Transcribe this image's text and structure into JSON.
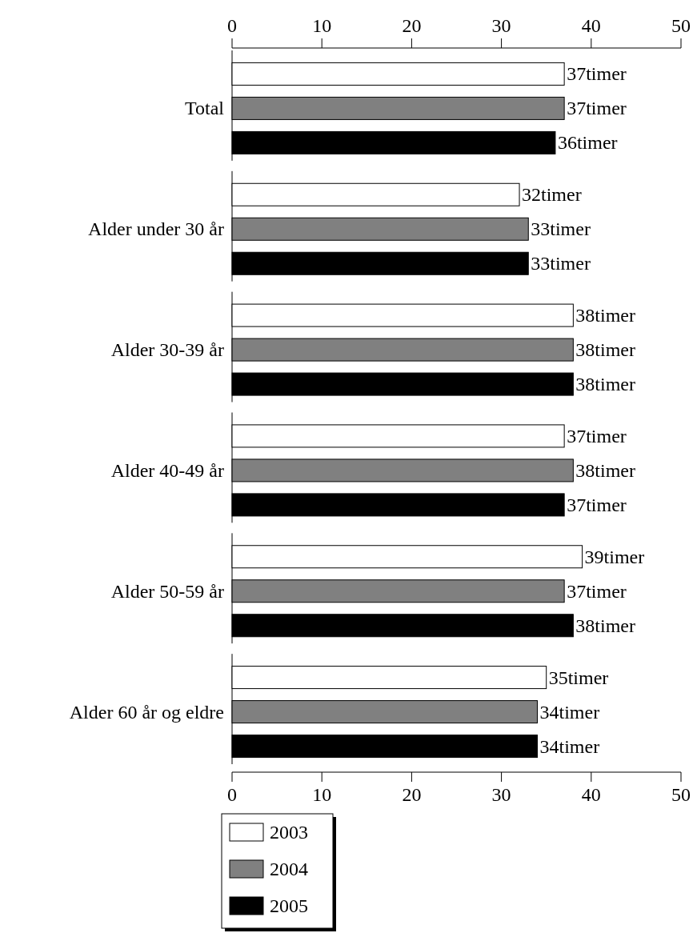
{
  "chart_data": {
    "type": "bar",
    "orientation": "horizontal",
    "categories": [
      "Total",
      "Alder under 30 år",
      "Alder 30-39 år",
      "Alder 40-49 år",
      "Alder 50-59 år",
      "Alder 60 år og eldre"
    ],
    "series": [
      {
        "name": "2003",
        "color": "#ffffff",
        "values": [
          37,
          32,
          38,
          37,
          39,
          35
        ],
        "value_labels": [
          "37timer",
          "32timer",
          "38timer",
          "37timer",
          "39timer",
          "35timer"
        ]
      },
      {
        "name": "2004",
        "color": "#808080",
        "values": [
          37,
          33,
          38,
          38,
          37,
          34
        ],
        "value_labels": [
          "37timer",
          "33timer",
          "38timer",
          "38timer",
          "37timer",
          "34timer"
        ]
      },
      {
        "name": "2005",
        "color": "#000000",
        "values": [
          36,
          33,
          38,
          37,
          38,
          34
        ],
        "value_labels": [
          "36timer",
          "33timer",
          "38timer",
          "37timer",
          "38timer",
          "34timer"
        ]
      }
    ],
    "xlim": [
      0,
      50
    ],
    "xticks": [
      0,
      10,
      20,
      30,
      40,
      50
    ],
    "x2lim": [
      0,
      50
    ],
    "x2ticks": [
      0,
      10,
      20,
      30,
      40,
      50
    ],
    "grid": false,
    "legend": "bottom"
  }
}
